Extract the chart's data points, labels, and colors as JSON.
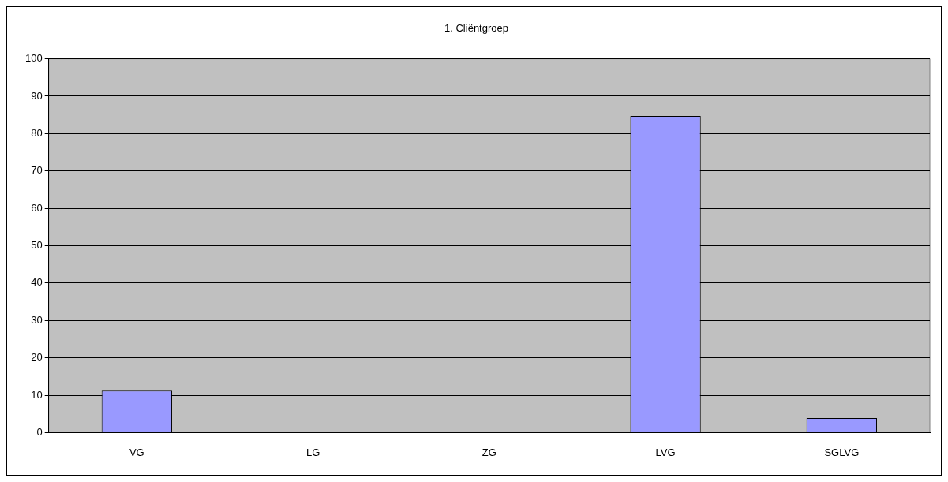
{
  "chart_data": {
    "type": "bar",
    "title": "1. Cliëntgroep",
    "categories": [
      "VG",
      "LG",
      "ZG",
      "LVG",
      "SGLVG"
    ],
    "values": [
      11.2,
      0,
      0,
      84.7,
      3.9
    ],
    "color": "#9999ff",
    "ylim": [
      0,
      100
    ],
    "yticks": [
      0,
      10,
      20,
      30,
      40,
      50,
      60,
      70,
      80,
      90,
      100
    ],
    "grid": "y",
    "legend": false
  }
}
